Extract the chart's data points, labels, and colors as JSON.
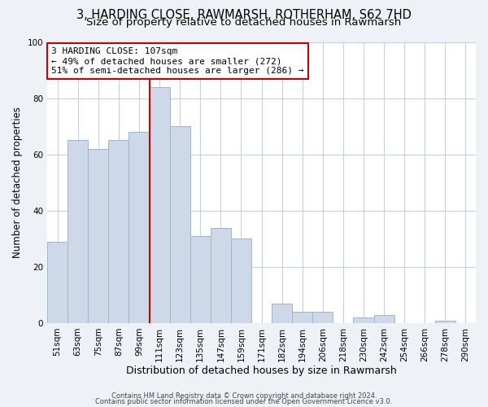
{
  "title": "3, HARDING CLOSE, RAWMARSH, ROTHERHAM, S62 7HD",
  "subtitle": "Size of property relative to detached houses in Rawmarsh",
  "xlabel": "Distribution of detached houses by size in Rawmarsh",
  "ylabel": "Number of detached properties",
  "bar_labels": [
    "51sqm",
    "63sqm",
    "75sqm",
    "87sqm",
    "99sqm",
    "111sqm",
    "123sqm",
    "135sqm",
    "147sqm",
    "159sqm",
    "171sqm",
    "182sqm",
    "194sqm",
    "206sqm",
    "218sqm",
    "230sqm",
    "242sqm",
    "254sqm",
    "266sqm",
    "278sqm",
    "290sqm"
  ],
  "bar_heights": [
    29,
    65,
    62,
    65,
    68,
    84,
    70,
    31,
    34,
    30,
    0,
    7,
    4,
    4,
    0,
    2,
    3,
    0,
    0,
    1,
    0
  ],
  "bar_color": "#cdd9e8",
  "bar_edge_color": "#9fb5cc",
  "vline_color": "#cc0000",
  "vline_pos": 4.5,
  "ylim": [
    0,
    100
  ],
  "annotation_line1": "3 HARDING CLOSE: 107sqm",
  "annotation_line2": "← 49% of detached houses are smaller (272)",
  "annotation_line3": "51% of semi-detached houses are larger (286) →",
  "annotation_box_facecolor": "#ffffff",
  "annotation_box_edgecolor": "#cc0000",
  "footer1": "Contains HM Land Registry data © Crown copyright and database right 2024.",
  "footer2": "Contains public sector information licensed under the Open Government Licence v3.0.",
  "bg_color": "#eef2f7",
  "plot_bg_color": "#ffffff",
  "grid_color": "#c5d0de",
  "title_fontsize": 10.5,
  "subtitle_fontsize": 9.5,
  "annotation_fontsize": 8.0,
  "xlabel_fontsize": 9,
  "ylabel_fontsize": 8.5,
  "tick_fontsize": 7.5,
  "footer_fontsize": 6.0
}
